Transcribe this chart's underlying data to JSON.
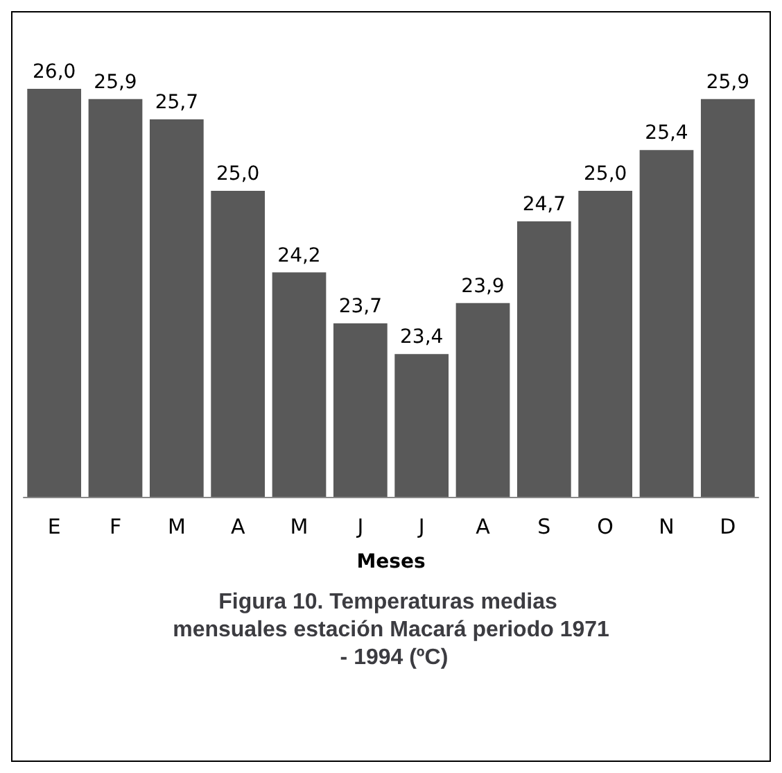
{
  "chart_data": {
    "type": "bar",
    "title": "Figura 10. Temperaturas medias mensuales estación Macará periodo 1971 - 1994 (ºC)",
    "xlabel": "Meses",
    "categories": [
      "E",
      "F",
      "M",
      "A",
      "M",
      "J",
      "J",
      "A",
      "S",
      "O",
      "N",
      "D"
    ],
    "values": [
      26.0,
      25.9,
      25.7,
      25.0,
      24.2,
      23.7,
      23.4,
      23.9,
      24.7,
      25.0,
      25.4,
      25.9
    ],
    "value_labels": [
      "26,0",
      "25,9",
      "25,7",
      "25,0",
      "24,2",
      "23,7",
      "23,4",
      "23,9",
      "24,7",
      "25,0",
      "25,4",
      "25,9"
    ],
    "color": "#595959",
    "ylim": [
      22,
      26
    ],
    "tick_labels": "x",
    "grid": false
  }
}
